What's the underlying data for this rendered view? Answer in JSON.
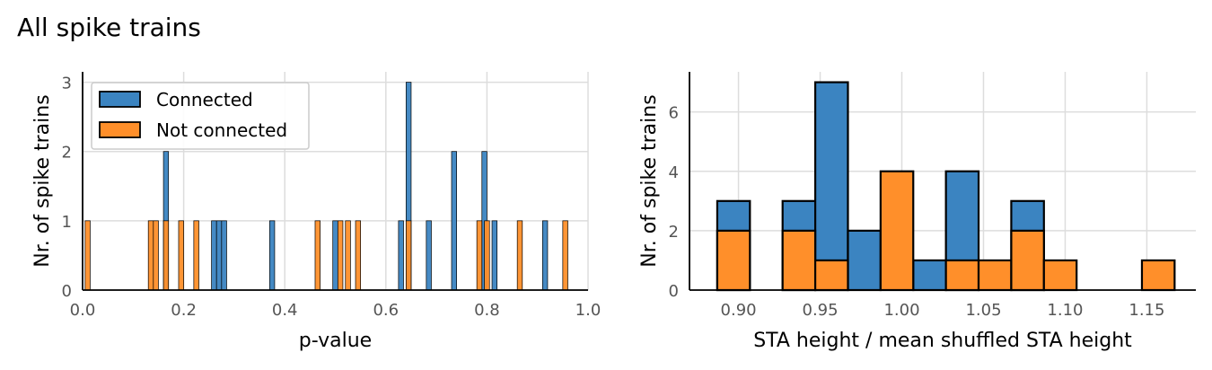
{
  "figure": {
    "title": "All spike trains"
  },
  "colors": {
    "connected": "#3b84c1",
    "not_connected": "#ff8f2a",
    "edge": "#000000",
    "grid": "#dddddd"
  },
  "chart_data": [
    {
      "type": "bar",
      "subtype": "histogram",
      "xlabel": "p-value",
      "ylabel": "Nr. of spike trains",
      "xlim": [
        0.0,
        1.0
      ],
      "ylim": [
        0,
        3.15
      ],
      "xticks": [
        "0.0",
        "0.2",
        "0.4",
        "0.6",
        "0.8",
        "1.0"
      ],
      "yticks": [
        "0",
        "1",
        "2",
        "3"
      ],
      "grid": true,
      "legend": {
        "placement": "top-left",
        "entries": [
          "Connected",
          "Not connected"
        ]
      },
      "bin_width": 0.01,
      "series": [
        {
          "name": "Connected",
          "bins": [
            {
              "x": 0.16,
              "count": 2
            },
            {
              "x": 0.255,
              "count": 1
            },
            {
              "x": 0.265,
              "count": 1
            },
            {
              "x": 0.275,
              "count": 1
            },
            {
              "x": 0.37,
              "count": 1
            },
            {
              "x": 0.495,
              "count": 1
            },
            {
              "x": 0.625,
              "count": 1
            },
            {
              "x": 0.64,
              "count": 3
            },
            {
              "x": 0.68,
              "count": 1
            },
            {
              "x": 0.73,
              "count": 2
            },
            {
              "x": 0.79,
              "count": 2
            },
            {
              "x": 0.81,
              "count": 1
            },
            {
              "x": 0.91,
              "count": 1
            }
          ]
        },
        {
          "name": "Not connected",
          "bins": [
            {
              "x": 0.005,
              "count": 1
            },
            {
              "x": 0.13,
              "count": 1
            },
            {
              "x": 0.14,
              "count": 1
            },
            {
              "x": 0.16,
              "count": 1
            },
            {
              "x": 0.19,
              "count": 1
            },
            {
              "x": 0.22,
              "count": 1
            },
            {
              "x": 0.46,
              "count": 1
            },
            {
              "x": 0.505,
              "count": 1
            },
            {
              "x": 0.52,
              "count": 1
            },
            {
              "x": 0.54,
              "count": 1
            },
            {
              "x": 0.64,
              "count": 1
            },
            {
              "x": 0.78,
              "count": 1
            },
            {
              "x": 0.795,
              "count": 1
            },
            {
              "x": 0.86,
              "count": 1
            },
            {
              "x": 0.95,
              "count": 1
            }
          ]
        }
      ]
    },
    {
      "type": "bar",
      "subtype": "histogram",
      "xlabel": "STA height / mean shuffled STA height",
      "ylabel": "Nr. of spike trains",
      "xlim": [
        0.87,
        1.18
      ],
      "ylim": [
        0,
        7.35
      ],
      "xticks": [
        "0.90",
        "0.95",
        "1.00",
        "1.05",
        "1.10",
        "1.15"
      ],
      "yticks": [
        "0",
        "2",
        "4",
        "6"
      ],
      "grid": true,
      "bin_edges": [
        0.887,
        0.907,
        0.927,
        0.947,
        0.967,
        0.987,
        1.007,
        1.027,
        1.047,
        1.067,
        1.087,
        1.107,
        1.127,
        1.147,
        1.167
      ],
      "series": [
        {
          "name": "Connected",
          "values": [
            3,
            0,
            3,
            7,
            2,
            0,
            1,
            4,
            0,
            3,
            0,
            0,
            0,
            0
          ]
        },
        {
          "name": "Not connected",
          "values": [
            2,
            0,
            2,
            1,
            0,
            4,
            0,
            1,
            1,
            2,
            1,
            0,
            0,
            1
          ]
        }
      ]
    }
  ]
}
